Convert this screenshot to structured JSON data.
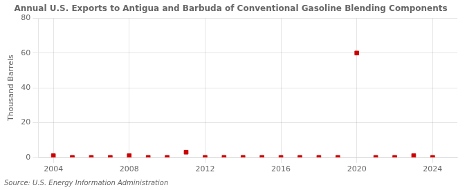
{
  "chart_data": {
    "type": "scatter",
    "title": "Annual U.S. Exports to Antigua and Barbuda of Conventional Gasoline Blending Components",
    "ylabel": "Thousand Barrels",
    "annotations": [
      "Source: U.S. Energy Information Administration"
    ],
    "x": [
      2004,
      2005,
      2006,
      2007,
      2008,
      2009,
      2010,
      2011,
      2012,
      2013,
      2014,
      2015,
      2016,
      2017,
      2018,
      2019,
      2020,
      2021,
      2022,
      2023,
      2024
    ],
    "values": [
      1,
      0,
      0,
      0,
      1,
      0,
      0,
      3,
      0,
      0,
      0,
      0,
      0,
      0,
      0,
      0,
      60,
      0,
      0,
      1,
      0
    ],
    "color": "#cc0000",
    "marker": "square",
    "xlim": [
      2003.2,
      2025.3
    ],
    "xticks": [
      2004,
      2008,
      2012,
      2016,
      2020,
      2024
    ],
    "ylim": [
      0,
      80
    ],
    "yticks": [
      0,
      20,
      40,
      60,
      80
    ],
    "grid": true
  }
}
